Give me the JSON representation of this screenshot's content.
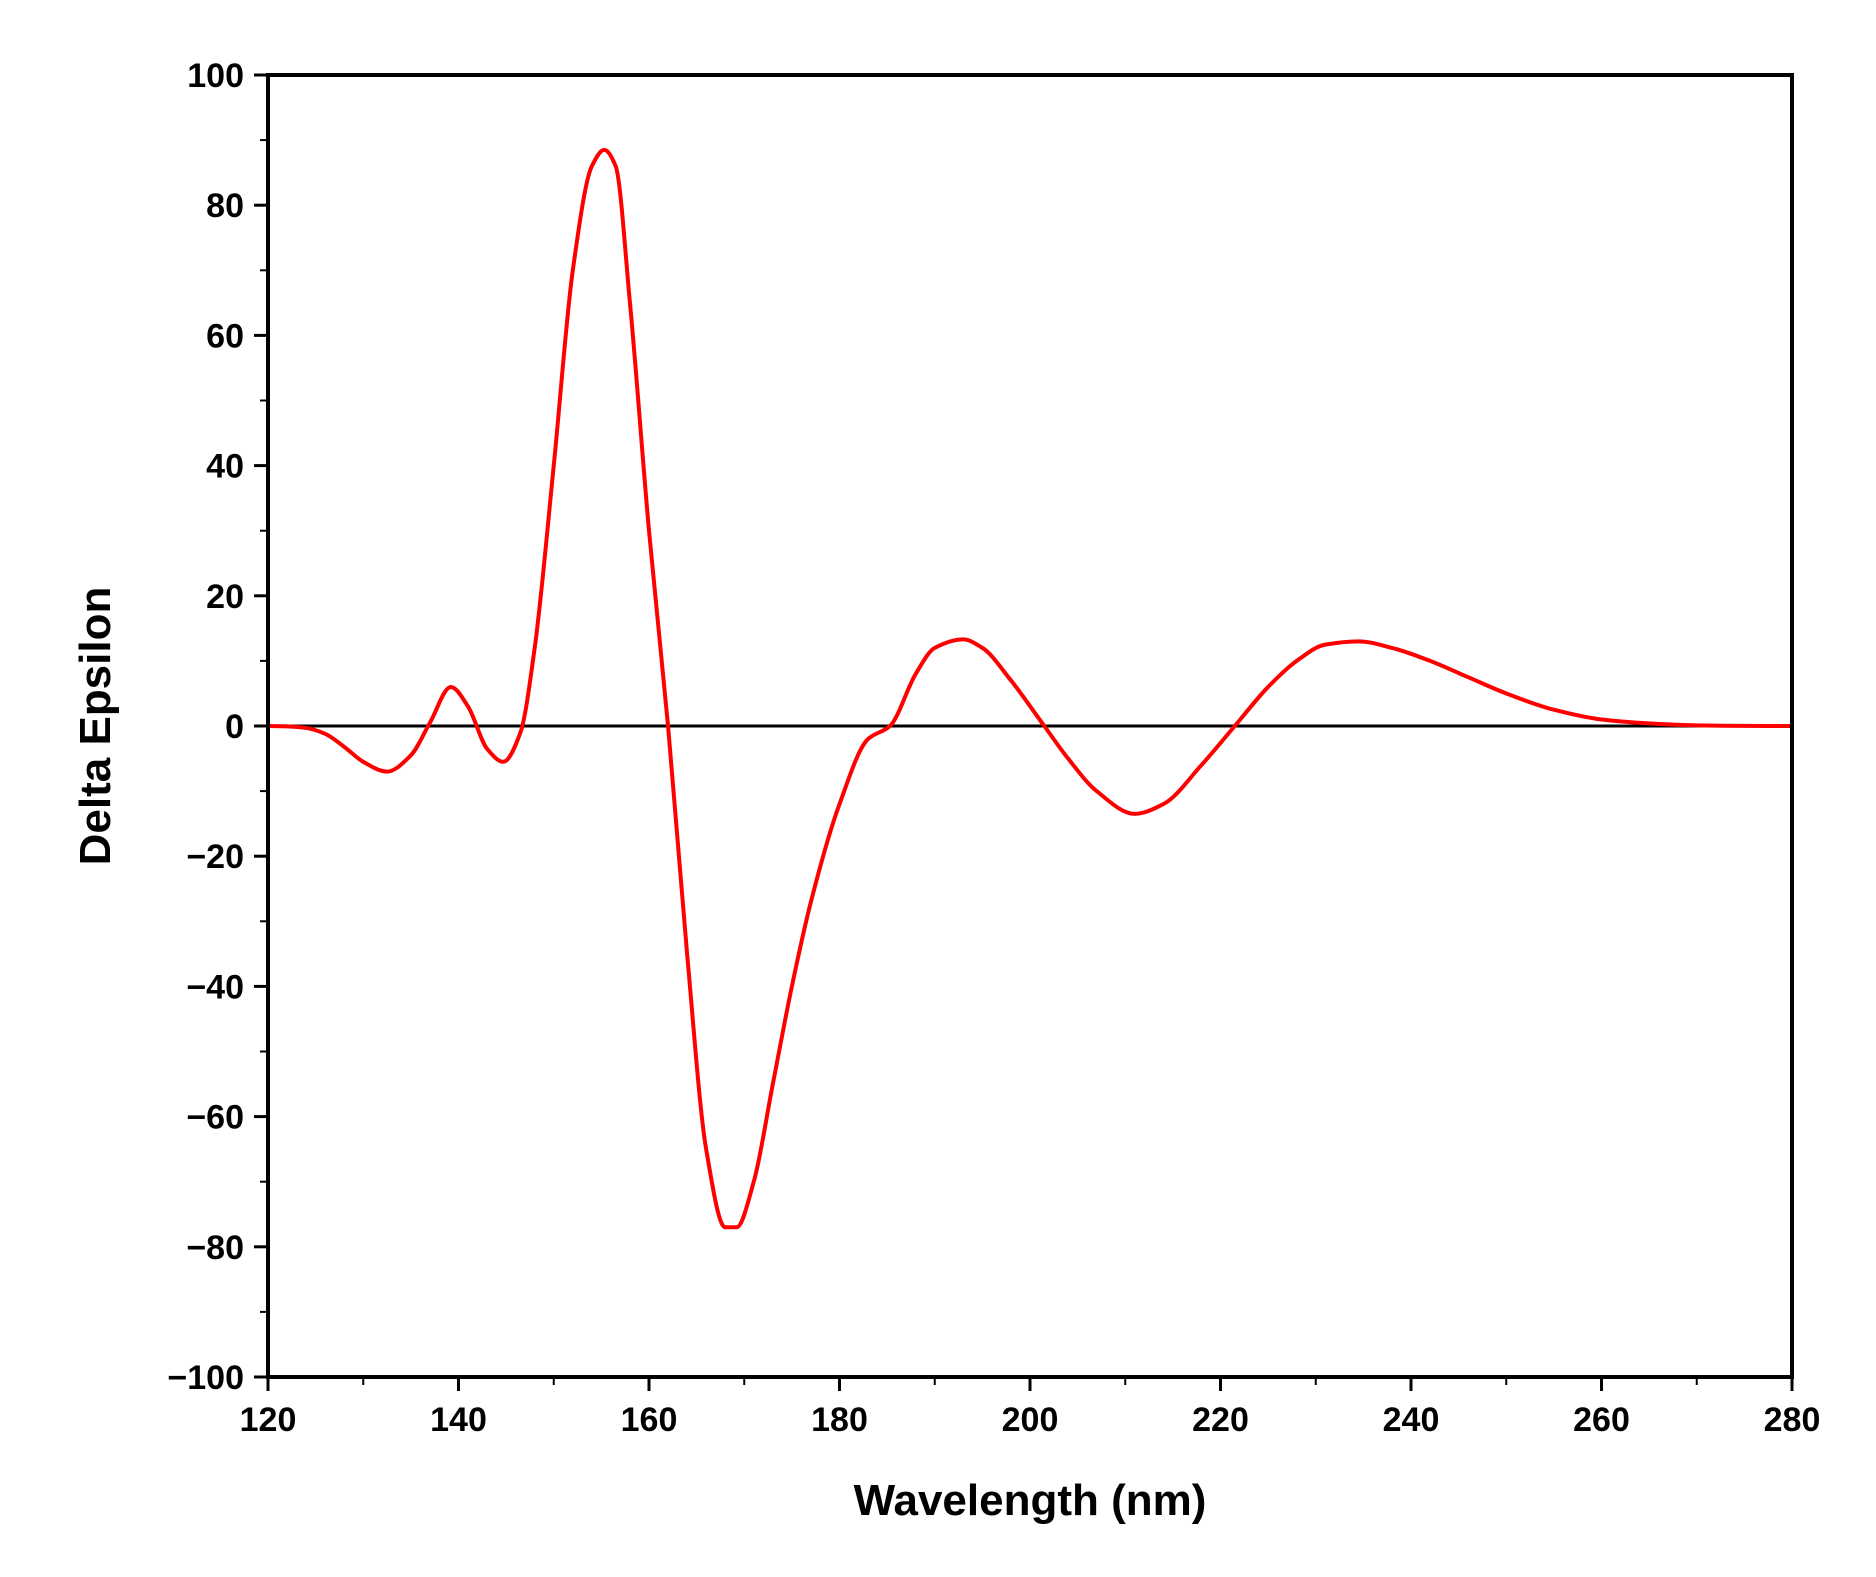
{
  "chart_data": {
    "type": "line",
    "title": "",
    "xlabel": "Wavelength (nm)",
    "ylabel": "Delta Epsilon",
    "xlim": [
      120,
      280
    ],
    "ylim": [
      -100,
      100
    ],
    "x_ticks": [
      120,
      140,
      160,
      180,
      200,
      220,
      240,
      260,
      280
    ],
    "y_ticks": [
      100,
      80,
      60,
      40,
      20,
      0,
      -20,
      -40,
      -60,
      -80,
      -100
    ],
    "x_tick_labels": [
      "120",
      "140",
      "160",
      "180",
      "200",
      "220",
      "240",
      "260",
      "280"
    ],
    "y_tick_labels": [
      "100",
      "80",
      "60",
      "40",
      "20",
      "0",
      "−20",
      "−40",
      "−60",
      "−80",
      "−100"
    ],
    "grid": false,
    "legend": "none",
    "zero_line": true,
    "colors": {
      "series": "#ff0000",
      "axes": "#000000"
    },
    "series": [
      {
        "x": [
          120,
          122,
          124,
          126,
          128,
          130,
          132.5,
          135,
          137,
          139.2,
          141,
          143,
          144.7,
          146.5,
          148,
          150,
          152,
          154,
          155.3,
          156.5,
          158,
          160,
          162,
          164,
          166,
          168,
          169.2,
          171,
          173,
          175,
          177,
          180,
          183,
          185.3,
          188,
          190,
          193,
          195,
          198,
          201.5,
          204,
          207,
          211,
          214,
          218,
          221.5,
          225,
          228,
          231,
          234.5,
          238,
          242,
          246,
          250,
          255,
          260,
          265,
          270,
          275,
          280
        ],
        "values": [
          0,
          -0.05,
          -0.3,
          -1.2,
          -3.2,
          -5.5,
          -7,
          -4.5,
          0.5,
          6,
          3,
          -3.5,
          -5.5,
          -1,
          12,
          40,
          70,
          86,
          88.5,
          86,
          65,
          30,
          0,
          -35,
          -65,
          -77,
          -77,
          -70,
          -55,
          -40,
          -27,
          -12,
          -2,
          0,
          8,
          12,
          13.3,
          12,
          7,
          0,
          -5,
          -10,
          -13.5,
          -12,
          -6,
          0,
          6,
          10,
          12.5,
          13,
          12,
          10,
          7.5,
          5,
          2.5,
          1,
          0.4,
          0.1,
          0.02,
          0
        ]
      }
    ]
  }
}
